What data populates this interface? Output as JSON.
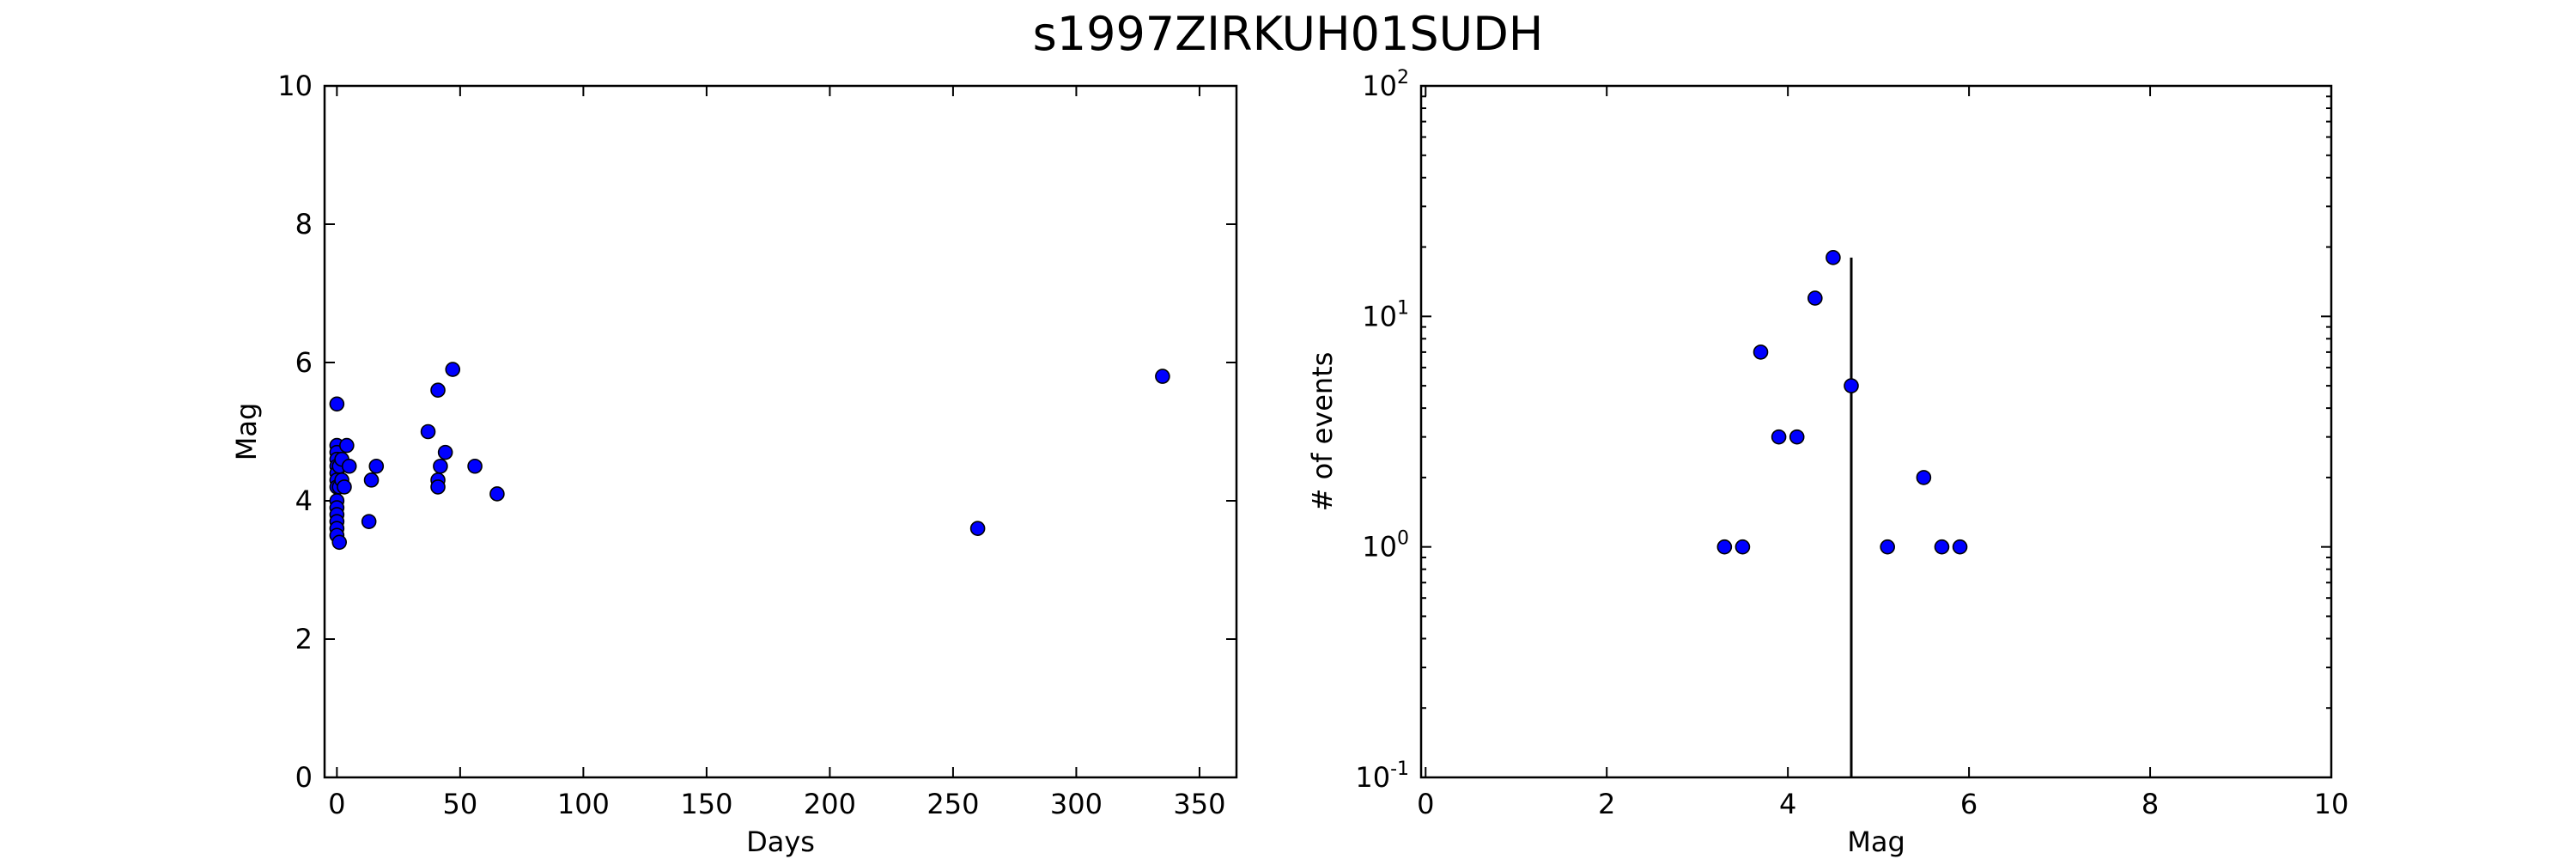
{
  "figure": {
    "title": "s1997ZIRKUH01SUDH"
  },
  "chart_data": [
    {
      "type": "scatter",
      "xlabel": "Days",
      "ylabel": "Mag",
      "xlim": [
        -5,
        365
      ],
      "ylim": [
        0,
        10
      ],
      "xticks": [
        0,
        50,
        100,
        150,
        200,
        250,
        300,
        350
      ],
      "yticks": [
        0,
        2,
        4,
        6,
        8,
        10
      ],
      "x_tick_labels": [
        "0",
        "50",
        "100",
        "150",
        "200",
        "250",
        "300",
        "350"
      ],
      "y_tick_labels": [
        "0",
        "2",
        "4",
        "6",
        "8",
        "10"
      ],
      "grid": false,
      "series": [
        {
          "color": "#0000ff",
          "points": [
            [
              0,
              5.4
            ],
            [
              0,
              4.8
            ],
            [
              0,
              4.7
            ],
            [
              0,
              4.6
            ],
            [
              0,
              4.5
            ],
            [
              0,
              4.4
            ],
            [
              0,
              4.3
            ],
            [
              0,
              4.2
            ],
            [
              0,
              4.0
            ],
            [
              0,
              3.9
            ],
            [
              0,
              3.8
            ],
            [
              0,
              3.7
            ],
            [
              0,
              3.6
            ],
            [
              0,
              3.5
            ],
            [
              1,
              3.4
            ],
            [
              1,
              4.2
            ],
            [
              1,
              4.5
            ],
            [
              2,
              4.6
            ],
            [
              2,
              4.3
            ],
            [
              3,
              4.2
            ],
            [
              4,
              4.8
            ],
            [
              5,
              4.5
            ],
            [
              13,
              3.7
            ],
            [
              14,
              4.3
            ],
            [
              16,
              4.5
            ],
            [
              37,
              5.0
            ],
            [
              41,
              5.6
            ],
            [
              41,
              4.3
            ],
            [
              41,
              4.2
            ],
            [
              42,
              4.5
            ],
            [
              44,
              4.7
            ],
            [
              47,
              5.9
            ],
            [
              56,
              4.5
            ],
            [
              65,
              4.1
            ],
            [
              260,
              3.6
            ],
            [
              335,
              5.8
            ]
          ]
        }
      ]
    },
    {
      "type": "scatter",
      "xlabel": "Mag",
      "ylabel": "# of events",
      "xlim": [
        -0.05,
        10
      ],
      "ylim": [
        0.1,
        100
      ],
      "yscale": "log",
      "xticks": [
        0,
        2,
        4,
        6,
        8,
        10
      ],
      "x_tick_labels": [
        "0",
        "2",
        "4",
        "6",
        "8",
        "10"
      ],
      "yticks": [
        0.1,
        1,
        10,
        100
      ],
      "y_tick_exponents": [
        "-1",
        "0",
        "1",
        "2"
      ],
      "y_tick_base": "10",
      "grid": false,
      "vertical_line": {
        "x": 4.7,
        "y_top": 18
      },
      "series": [
        {
          "color": "#0000ff",
          "points": [
            [
              3.3,
              1
            ],
            [
              3.5,
              1
            ],
            [
              3.7,
              7
            ],
            [
              3.9,
              3
            ],
            [
              4.1,
              3
            ],
            [
              4.3,
              12
            ],
            [
              4.5,
              18
            ],
            [
              4.7,
              5
            ],
            [
              5.1,
              1
            ],
            [
              5.5,
              2
            ],
            [
              5.7,
              1
            ],
            [
              5.9,
              1
            ]
          ]
        }
      ]
    }
  ]
}
